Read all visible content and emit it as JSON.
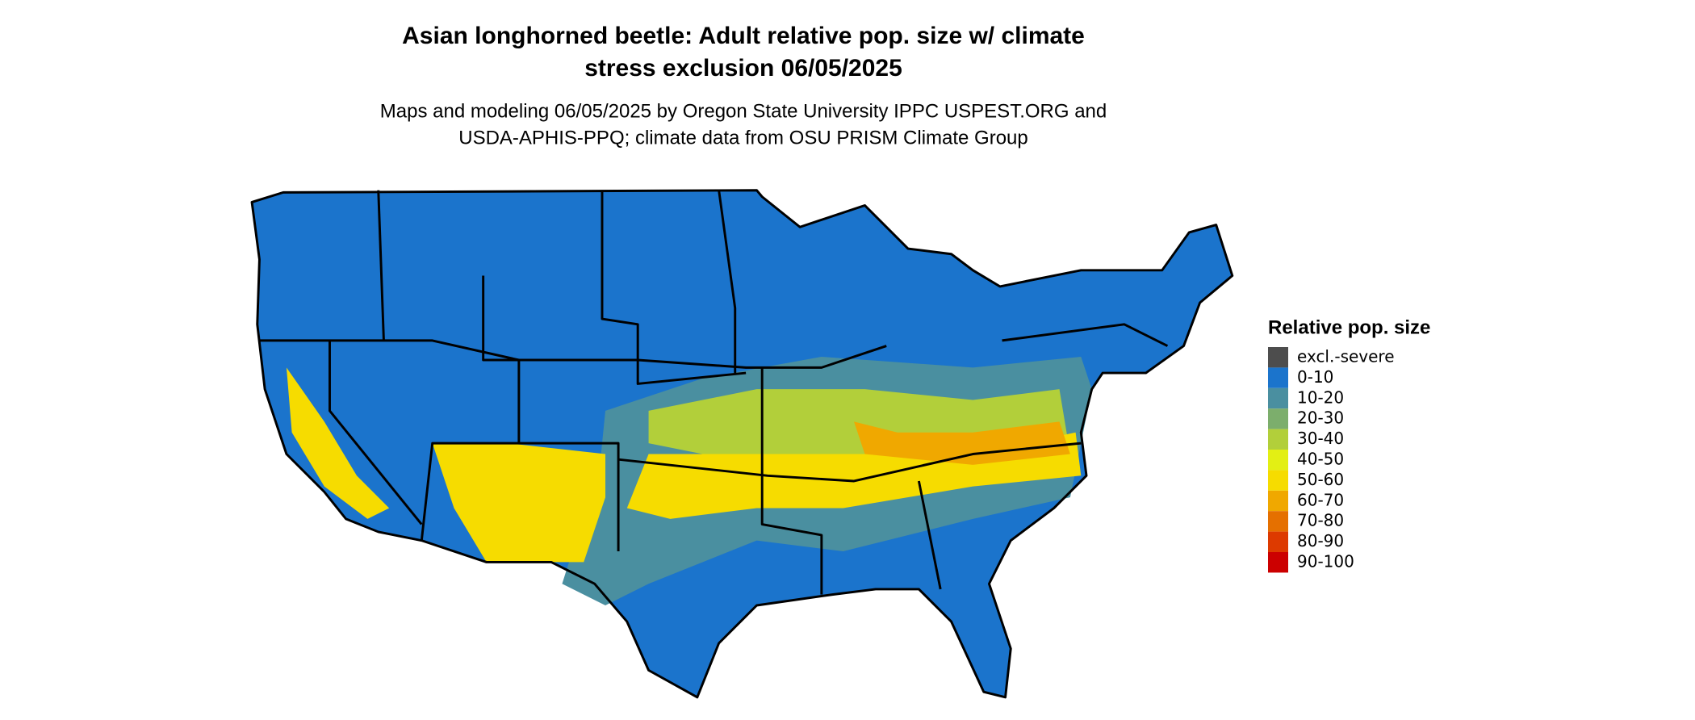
{
  "title": [
    "Asian longhorned beetle: Adult relative pop. size w/ climate",
    "stress exclusion 06/05/2025"
  ],
  "subtitle": [
    "Maps and modeling 06/05/2025 by Oregon State University IPPC USPEST.ORG and",
    "USDA-APHIS-PPQ; climate data from OSU PRISM Climate Group"
  ],
  "legend": {
    "title": "Relative pop. size",
    "items": [
      {
        "label": "excl.-severe",
        "color": "#4d4d4d"
      },
      {
        "label": "0-10",
        "color": "#1b74cc"
      },
      {
        "label": "10-20",
        "color": "#4a8fa0"
      },
      {
        "label": "20-30",
        "color": "#7cae6c"
      },
      {
        "label": "30-40",
        "color": "#b2cf3a"
      },
      {
        "label": "40-50",
        "color": "#e3ef14"
      },
      {
        "label": "50-60",
        "color": "#f6dc00"
      },
      {
        "label": "60-70",
        "color": "#f0a800"
      },
      {
        "label": "70-80",
        "color": "#e57000"
      },
      {
        "label": "80-90",
        "color": "#dd3a00"
      },
      {
        "label": "90-100",
        "color": "#cc0000"
      }
    ]
  }
}
